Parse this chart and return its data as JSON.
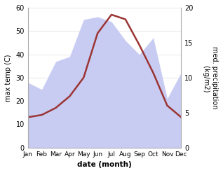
{
  "months": [
    "Jan",
    "Feb",
    "Mar",
    "Apr",
    "May",
    "Jun",
    "Jul",
    "Aug",
    "Sep",
    "Oct",
    "Nov",
    "Dec"
  ],
  "month_x": [
    1,
    2,
    3,
    4,
    5,
    6,
    7,
    8,
    9,
    10,
    11,
    12
  ],
  "temperature": [
    13,
    14,
    17,
    22,
    30,
    49,
    57,
    55,
    44,
    32,
    18,
    13
  ],
  "precipitation": [
    9.3,
    8.3,
    12.3,
    13.0,
    18.3,
    18.7,
    18.0,
    15.3,
    13.3,
    15.7,
    7.0,
    10.7
  ],
  "temp_color": "#9b3535",
  "precip_color_fill": "#c8ccf2",
  "left_label": "max temp (C)",
  "right_label": "med. precipitation\n (kg/m2)",
  "xlabel": "date (month)",
  "ylim_left": [
    0,
    60
  ],
  "ylim_right": [
    0,
    20
  ],
  "yticks_left": [
    0,
    10,
    20,
    30,
    40,
    50,
    60
  ],
  "yticks_right": [
    0,
    5,
    10,
    15,
    20
  ],
  "bg_color": "#ffffff",
  "grid_color": "#dddddd"
}
